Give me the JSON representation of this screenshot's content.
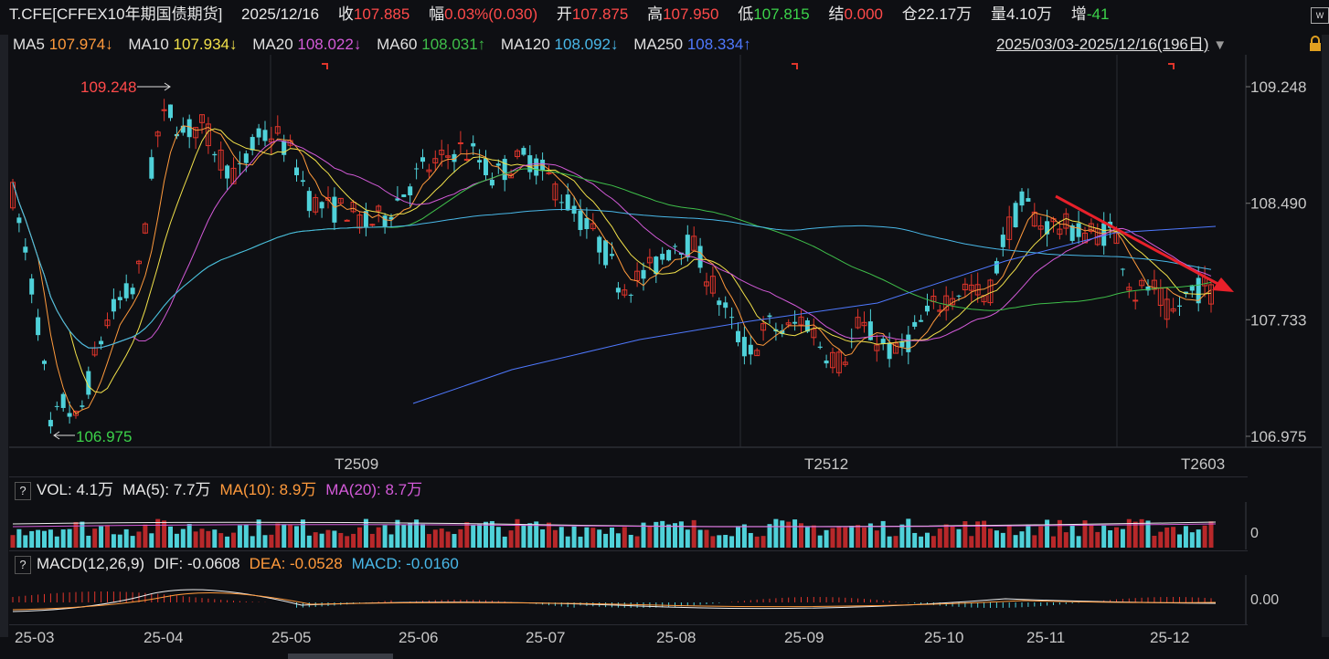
{
  "header": {
    "symbol": "T.CFE[CFFEX10年期国债期货]",
    "date": "2025/12/16",
    "close_label": "收",
    "close": "107.885",
    "change_label": "幅",
    "change": "0.03%(0.030)",
    "open_label": "开",
    "open": "107.875",
    "high_label": "高",
    "high": "107.950",
    "low_label": "低",
    "low": "107.815",
    "settle_label": "结",
    "settle": "0.000",
    "oi_label": "仓",
    "oi": "22.17万",
    "vol_label": "量",
    "vol": "4.10万",
    "inc_label": "增",
    "inc": "-41"
  },
  "ma_legend": [
    {
      "label": "MA5",
      "value": "107.974↓",
      "color": "#ff9a3c"
    },
    {
      "label": "MA10",
      "value": "107.934↓",
      "color": "#f2e14a"
    },
    {
      "label": "MA20",
      "value": "108.022↓",
      "color": "#d35ad8"
    },
    {
      "label": "MA60",
      "value": "108.031↑",
      "color": "#3fbf4a"
    },
    {
      "label": "MA120",
      "value": "108.092↓",
      "color": "#49b8e8"
    },
    {
      "label": "MA250",
      "value": "108.334↑",
      "color": "#4f79ff"
    }
  ],
  "range": {
    "text": "2025/03/03-2025/12/16(196日)",
    "dropdown_icon": "triangle-down-icon"
  },
  "main_axis": {
    "ticks": [
      "109.248",
      "108.490",
      "107.733",
      "106.975"
    ]
  },
  "annotations": {
    "high": "109.248",
    "low": "106.975"
  },
  "contracts": [
    "T2509",
    "T2512",
    "T2603"
  ],
  "volume_panel": {
    "question": "?",
    "title": "VOL: 4.1万",
    "ma5": "MA(5): 7.7万",
    "ma10": "MA(10): 8.9万",
    "ma20": "MA(20): 8.7万",
    "axis": "0"
  },
  "macd_panel": {
    "question": "?",
    "title": "MACD(12,26,9)",
    "dif": "DIF: -0.0608",
    "dea": "DEA: -0.0528",
    "macd": "MACD: -0.0160",
    "axis": "0.00"
  },
  "months": [
    "25-03",
    "25-04",
    "25-05",
    "25-06",
    "25-07",
    "25-08",
    "25-09",
    "25-10",
    "25-11",
    "25-12"
  ],
  "colors": {
    "up": "#e0352b",
    "down": "#4fd1d9",
    "bg": "#0e0f13",
    "grid": "#2a2c33",
    "text": "#c8c8c8",
    "arrow": "#e8202a"
  }
}
